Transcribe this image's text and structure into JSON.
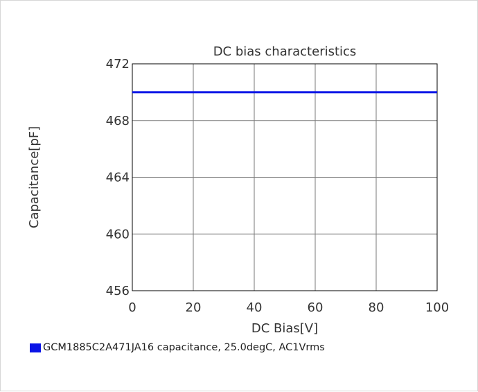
{
  "chart_data": {
    "type": "line",
    "title": "DC bias characteristics",
    "xlabel": "DC Bias[V]",
    "ylabel": "Capacitance[pF]",
    "xlim": [
      0,
      100
    ],
    "ylim": [
      456,
      472
    ],
    "x_ticks": [
      0,
      20,
      40,
      60,
      80,
      100
    ],
    "y_ticks": [
      456,
      460,
      464,
      468,
      472
    ],
    "grid": true,
    "legend_position": "bottom-left",
    "series": [
      {
        "name": "GCM1885C2A471JA16 capacitance, 25.0degC, AC1Vrms",
        "color": "#0a14e6",
        "x": [
          0,
          20,
          40,
          60,
          80,
          100
        ],
        "y": [
          470,
          470,
          470,
          470,
          470,
          470
        ]
      }
    ]
  }
}
